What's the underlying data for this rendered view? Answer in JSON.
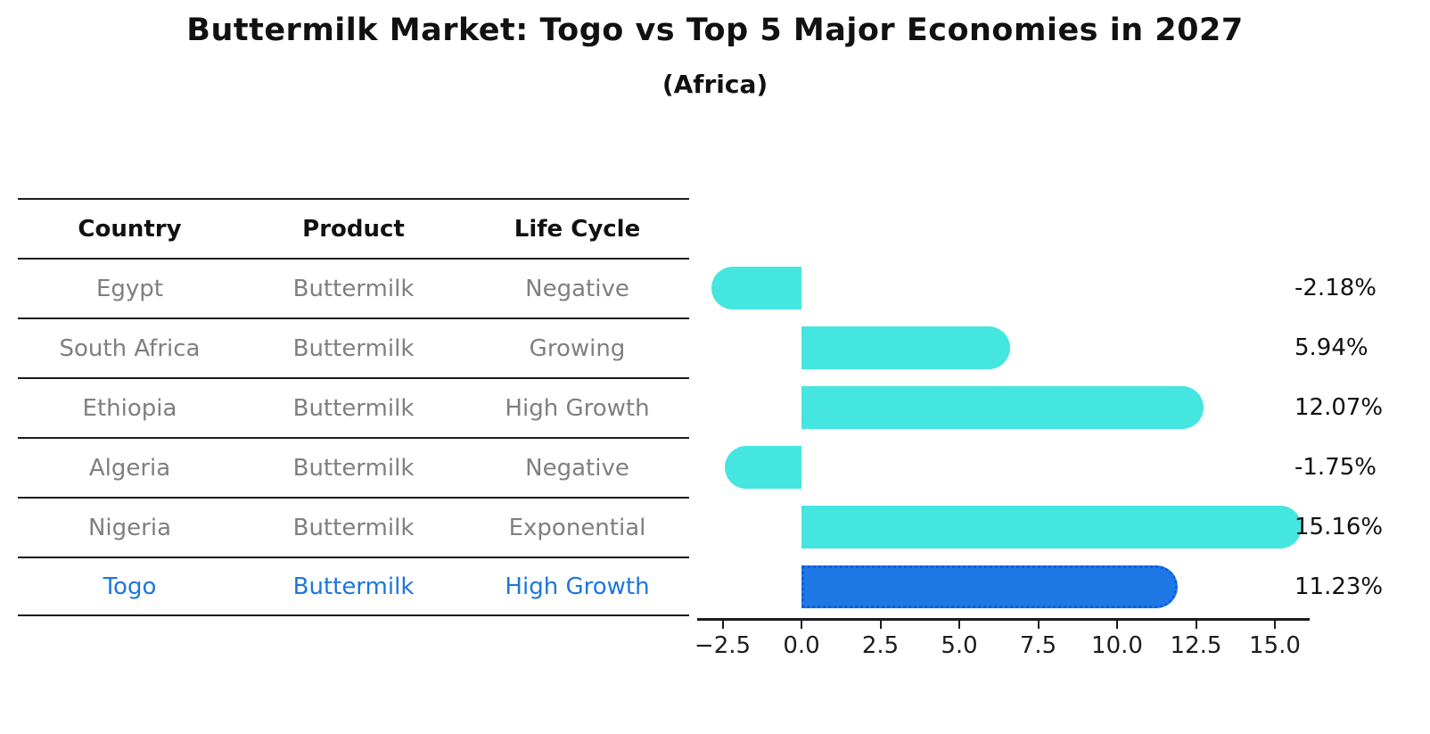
{
  "title": "Buttermilk Market: Togo vs Top 5 Major Economies in 2027",
  "subtitle": "(Africa)",
  "table": {
    "headers": [
      "Country",
      "Product",
      "Life Cycle"
    ],
    "rows": [
      {
        "country": "Egypt",
        "product": "Buttermilk",
        "life_cycle": "Negative",
        "highlight": false
      },
      {
        "country": "South Africa",
        "product": "Buttermilk",
        "life_cycle": "Growing",
        "highlight": false
      },
      {
        "country": "Ethiopia",
        "product": "Buttermilk",
        "life_cycle": "High Growth",
        "highlight": false
      },
      {
        "country": "Algeria",
        "product": "Buttermilk",
        "life_cycle": "Negative",
        "highlight": false
      },
      {
        "country": "Nigeria",
        "product": "Buttermilk",
        "life_cycle": "Exponential",
        "highlight": false
      },
      {
        "country": "Togo",
        "product": "Buttermilk",
        "life_cycle": "High Growth",
        "highlight": true
      }
    ]
  },
  "chart_data": {
    "type": "bar",
    "orientation": "horizontal",
    "title": "Buttermilk Market: Togo vs Top 5 Major Economies in 2027",
    "subtitle": "(Africa)",
    "categories": [
      "Egypt",
      "South Africa",
      "Ethiopia",
      "Algeria",
      "Nigeria",
      "Togo"
    ],
    "values": [
      -2.18,
      5.94,
      12.07,
      -1.75,
      15.16,
      11.23
    ],
    "value_labels": [
      "-2.18%",
      "5.94%",
      "12.07%",
      "-1.75%",
      "15.16%",
      "11.23%"
    ],
    "x_ticks": [
      -2.5,
      0.0,
      2.5,
      5.0,
      7.5,
      10.0,
      12.5,
      15.0
    ],
    "x_tick_labels": [
      "−2.5",
      "0.0",
      "2.5",
      "5.0",
      "7.5",
      "10.0",
      "12.5",
      "15.0"
    ],
    "xlim": [
      -3.3,
      16.1
    ],
    "grid": false,
    "legend": false,
    "highlight_index": 5
  },
  "colors": {
    "bar_default": "#45e5e0",
    "bar_highlight": "#1e78e6",
    "bar_highlight_border": "#0f5fd7",
    "row_highlight_text": "#1d76dd",
    "table_text": "#7f7f7f",
    "axis": "#1c1c1c"
  }
}
